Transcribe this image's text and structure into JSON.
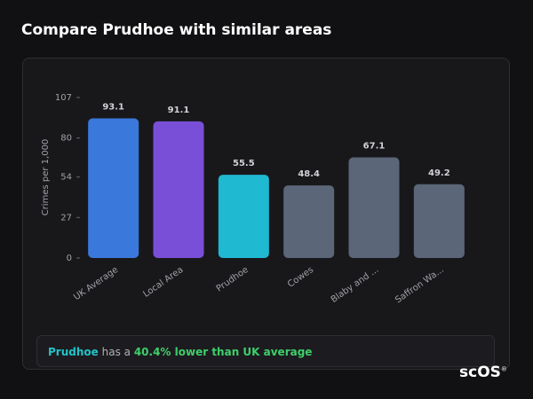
{
  "page_title": "Compare Prudhoe with similar areas",
  "chart_data": {
    "type": "bar",
    "y_label": "Crimes per 1,000",
    "categories": [
      "UK Average",
      "Local Area",
      "Prudhoe",
      "Cowes",
      "Blaby and ...",
      "Saffron Wa..."
    ],
    "values": [
      93.1,
      91.1,
      55.5,
      48.4,
      67.1,
      49.2
    ],
    "colors": [
      "#3a78dc",
      "#7a4fd8",
      "#1fb9d1",
      "#5b6678",
      "#5b6678",
      "#5b6678"
    ],
    "ylim": [
      0,
      107
    ],
    "yticks": [
      0,
      27,
      54,
      80,
      107
    ]
  },
  "summary": {
    "place": "Prudhoe",
    "text": "has a",
    "highlight": "40.4% lower than UK average"
  },
  "logo": {
    "text": "scOS",
    "mark": "®"
  }
}
